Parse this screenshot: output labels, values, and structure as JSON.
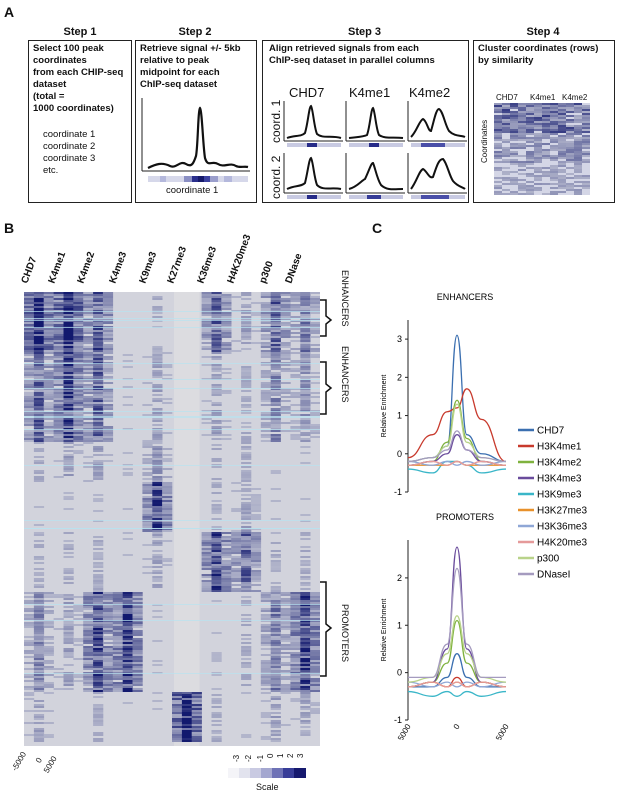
{
  "panels": {
    "A": "A",
    "B": "B",
    "C": "C"
  },
  "steps": [
    {
      "title": "Step 1",
      "lines_bold": [
        "Select 100 peak",
        "coordinates",
        "from each CHIP-seq",
        "dataset",
        "(total =",
        "1000 coordinates)"
      ],
      "lines": [
        "coordinate 1",
        "coordinate 2",
        "coordinate 3",
        "etc."
      ]
    },
    {
      "title": "Step 2",
      "lines_bold": [
        "Retrieve signal +/- 5kb",
        "relative to peak",
        "midpoint for each",
        "ChIP-seq dataset"
      ],
      "caption": "coordinate 1"
    },
    {
      "title": "Step 3",
      "lines_bold": [
        "Align retrieved signals from each",
        "ChIP-seq dataset in parallel columns"
      ],
      "cols": [
        "CHD7",
        "K4me1",
        "K4me2"
      ],
      "rows": [
        "coord. 1",
        "coord. 2"
      ]
    },
    {
      "title": "Step 4",
      "lines_bold": [
        "Cluster coordinates (rows)",
        "by similarity"
      ],
      "cols": [
        "CHD7",
        "K4me1",
        "K4me2"
      ],
      "ylabel": "Coordinates"
    }
  ],
  "heatmap": {
    "columns": [
      "CHD7",
      "K4me1",
      "K4me2",
      "K4me3",
      "K9me3",
      "K27me3",
      "K36me3",
      "H4K20me3",
      "p300",
      "DNase"
    ],
    "brackets": [
      "ENHANCERS",
      "ENHANCERS",
      "PROMOTERS"
    ],
    "xticks": [
      "-5000",
      "0",
      "5000"
    ],
    "scale_ticks": [
      "-3",
      "-2",
      "-1",
      "0",
      "1",
      "2",
      "3"
    ],
    "scale_label": "Scale"
  },
  "chart_data": [
    {
      "type": "line",
      "title": "ENHANCERS",
      "ylabel": "Relative Enrichment",
      "ylim": [
        -1,
        3.5
      ],
      "yticks": [
        "3",
        "2",
        "1",
        "0",
        "-1"
      ],
      "x": [
        -5000,
        -2500,
        -1000,
        0,
        1000,
        2500,
        5000
      ],
      "series": [
        {
          "name": "CHD7",
          "color": "#3b6fb0",
          "values": [
            -0.2,
            -0.1,
            0.2,
            3.1,
            0.5,
            0.0,
            -0.2
          ]
        },
        {
          "name": "H3K4me1",
          "color": "#c83a2d",
          "values": [
            -0.1,
            0.5,
            1.1,
            1.2,
            1.7,
            0.9,
            -0.2
          ]
        },
        {
          "name": "H3K4me2",
          "color": "#7fb23e",
          "values": [
            -0.3,
            -0.2,
            0.3,
            1.4,
            0.4,
            -0.2,
            -0.3
          ]
        },
        {
          "name": "H3K4me3",
          "color": "#6a4c9c",
          "values": [
            -0.3,
            -0.2,
            0.0,
            0.5,
            0.1,
            -0.2,
            -0.3
          ]
        },
        {
          "name": "H3K9me3",
          "color": "#3ab6c8",
          "values": [
            -0.4,
            -0.5,
            -0.2,
            -0.2,
            -0.3,
            -0.5,
            -0.4
          ]
        },
        {
          "name": "H3K27me3",
          "color": "#e8912b",
          "values": [
            -0.3,
            -0.3,
            -0.3,
            -0.2,
            -0.3,
            -0.3,
            -0.3
          ]
        },
        {
          "name": "H3K36me3",
          "color": "#8fa7d6",
          "values": [
            -0.2,
            -0.3,
            -0.2,
            -0.3,
            -0.2,
            -0.3,
            -0.2
          ]
        },
        {
          "name": "H4K20me3",
          "color": "#e59a9a",
          "values": [
            -0.3,
            -0.2,
            -0.3,
            -0.2,
            -0.3,
            -0.2,
            -0.3
          ]
        },
        {
          "name": "p300",
          "color": "#b9d38a",
          "values": [
            -0.2,
            -0.1,
            0.2,
            1.3,
            0.3,
            -0.1,
            -0.2
          ]
        },
        {
          "name": "DNaseI",
          "color": "#a59bbf",
          "values": [
            -0.2,
            -0.1,
            0.1,
            0.6,
            0.1,
            -0.1,
            -0.2
          ]
        }
      ]
    },
    {
      "type": "line",
      "title": "PROMOTERS",
      "ylabel": "Relative Enrichment",
      "ylim": [
        -1,
        2.8
      ],
      "yticks": [
        "2",
        "1",
        "0",
        "-1"
      ],
      "xticks": [
        "-5000",
        "0",
        "5000"
      ],
      "x": [
        -5000,
        -2500,
        -1000,
        0,
        1000,
        2500,
        5000
      ],
      "series": [
        {
          "name": "CHD7",
          "color": "#3b6fb0",
          "values": [
            -0.3,
            -0.3,
            -0.1,
            0.4,
            -0.1,
            -0.3,
            -0.3
          ]
        },
        {
          "name": "H3K4me1",
          "color": "#c83a2d",
          "values": [
            -0.3,
            -0.2,
            -0.3,
            -0.1,
            -0.3,
            -0.2,
            -0.3
          ]
        },
        {
          "name": "H3K4me2",
          "color": "#7fb23e",
          "values": [
            -0.3,
            -0.2,
            0.2,
            1.1,
            0.2,
            -0.2,
            -0.3
          ]
        },
        {
          "name": "H3K4me3",
          "color": "#6a4c9c",
          "values": [
            -0.3,
            -0.2,
            0.5,
            2.65,
            0.5,
            -0.2,
            -0.3
          ]
        },
        {
          "name": "H3K9me3",
          "color": "#3ab6c8",
          "values": [
            -0.4,
            -0.5,
            -0.4,
            -0.5,
            -0.4,
            -0.5,
            -0.4
          ]
        },
        {
          "name": "H3K27me3",
          "color": "#e8912b",
          "values": [
            -0.3,
            -0.2,
            -0.3,
            -0.2,
            -0.3,
            -0.2,
            -0.3
          ]
        },
        {
          "name": "H3K36me3",
          "color": "#8fa7d6",
          "values": [
            -0.2,
            -0.3,
            -0.2,
            -0.3,
            -0.2,
            -0.3,
            -0.2
          ]
        },
        {
          "name": "H4K20me3",
          "color": "#e59a9a",
          "values": [
            -0.3,
            -0.2,
            -0.3,
            -0.2,
            -0.3,
            -0.2,
            -0.3
          ]
        },
        {
          "name": "p300",
          "color": "#b9d38a",
          "values": [
            -0.2,
            -0.1,
            0.4,
            1.2,
            0.4,
            -0.1,
            -0.2
          ]
        },
        {
          "name": "DNaseI",
          "color": "#a59bbf",
          "values": [
            -0.1,
            -0.1,
            0.6,
            2.2,
            0.6,
            -0.1,
            -0.1
          ]
        }
      ]
    }
  ]
}
